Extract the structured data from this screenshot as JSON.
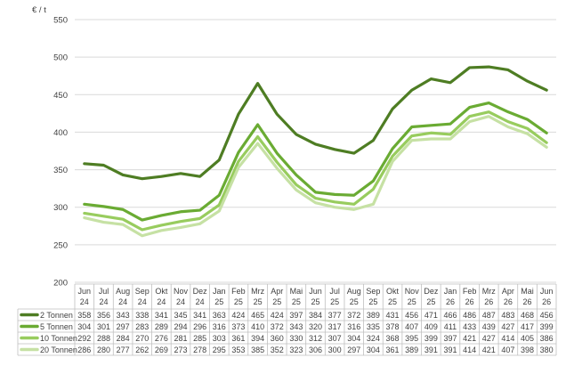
{
  "chart_data": {
    "type": "line",
    "ylabel": "€ / t",
    "ylim": [
      200,
      550
    ],
    "yticks": [
      200,
      250,
      300,
      350,
      400,
      450,
      500,
      550
    ],
    "grid": true,
    "legend": "data-table",
    "categories": [
      [
        "Jun",
        "24"
      ],
      [
        "Jul",
        "24"
      ],
      [
        "Aug",
        "24"
      ],
      [
        "Sep",
        "24"
      ],
      [
        "Okt",
        "24"
      ],
      [
        "Nov",
        "24"
      ],
      [
        "Dez",
        "24"
      ],
      [
        "Jan",
        "25"
      ],
      [
        "Feb",
        "25"
      ],
      [
        "Mrz",
        "25"
      ],
      [
        "Apr",
        "25"
      ],
      [
        "Mai",
        "25"
      ],
      [
        "Jun",
        "25"
      ],
      [
        "Jul",
        "25"
      ],
      [
        "Aug",
        "25"
      ],
      [
        "Sep",
        "25"
      ],
      [
        "Okt",
        "25"
      ],
      [
        "Nov",
        "25"
      ],
      [
        "Dez",
        "25"
      ],
      [
        "Jan",
        "26"
      ],
      [
        "Feb",
        "26"
      ],
      [
        "Mrz",
        "26"
      ],
      [
        "Apr",
        "26"
      ],
      [
        "Mai",
        "26"
      ],
      [
        "Jun",
        "26"
      ]
    ],
    "series": [
      {
        "name": "2 Tonnen",
        "color": "#4e7d23",
        "values": [
          358,
          356,
          343,
          338,
          341,
          345,
          341,
          363,
          424,
          465,
          424,
          397,
          384,
          377,
          372,
          389,
          431,
          456,
          471,
          466,
          486,
          487,
          483,
          468,
          456
        ]
      },
      {
        "name": "5 Tonnen",
        "color": "#6aab33",
        "values": [
          304,
          301,
          297,
          283,
          289,
          294,
          296,
          316,
          373,
          410,
          372,
          343,
          320,
          317,
          316,
          335,
          378,
          407,
          409,
          411,
          433,
          439,
          427,
          417,
          399
        ]
      },
      {
        "name": "10 Tonnen",
        "color": "#98cc5e",
        "values": [
          292,
          288,
          284,
          270,
          276,
          281,
          285,
          303,
          361,
          394,
          360,
          330,
          312,
          307,
          304,
          324,
          368,
          395,
          399,
          397,
          421,
          427,
          414,
          405,
          386
        ]
      },
      {
        "name": "20 Tonnen",
        "color": "#c6e1a4",
        "values": [
          286,
          280,
          277,
          262,
          269,
          273,
          278,
          295,
          353,
          385,
          352,
          323,
          306,
          300,
          297,
          304,
          361,
          389,
          391,
          391,
          414,
          421,
          407,
          398,
          380
        ]
      }
    ]
  }
}
